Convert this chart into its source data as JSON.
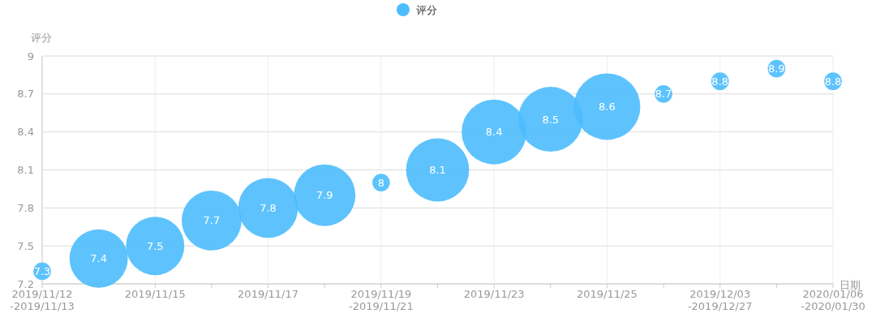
{
  "chart_data": {
    "type": "bubble",
    "xlabel": "日期",
    "ylabel": "评分",
    "categories": [
      "2019/11/12\n-2019/11/13",
      null,
      "2019/11/15",
      null,
      "2019/11/17",
      null,
      "2019/11/19\n-2019/11/21",
      null,
      "2019/11/23",
      null,
      "2019/11/25",
      null,
      "2019/12/03\n-2019/12/27",
      null,
      "2020/01/06\n-2020/01/30"
    ],
    "series": [
      {
        "name": "评分",
        "color": "#4dbcfd",
        "values": [
          7.3,
          7.4,
          7.5,
          7.7,
          7.8,
          7.9,
          8,
          8.1,
          8.4,
          8.5,
          8.6,
          8.7,
          8.8,
          8.9,
          8.8
        ],
        "sizes": [
          0.07,
          0.77,
          0.77,
          0.81,
          0.81,
          0.86,
          0.07,
          0.9,
          0.95,
          0.95,
          1,
          0.07,
          0.07,
          0.07,
          0.07
        ]
      }
    ],
    "ylim": [
      7.2,
      9
    ],
    "yticks": [
      7.2,
      7.5,
      7.8,
      8.1,
      8.4,
      8.7,
      9
    ],
    "grid": true,
    "legend": "top",
    "data_labels": true
  }
}
